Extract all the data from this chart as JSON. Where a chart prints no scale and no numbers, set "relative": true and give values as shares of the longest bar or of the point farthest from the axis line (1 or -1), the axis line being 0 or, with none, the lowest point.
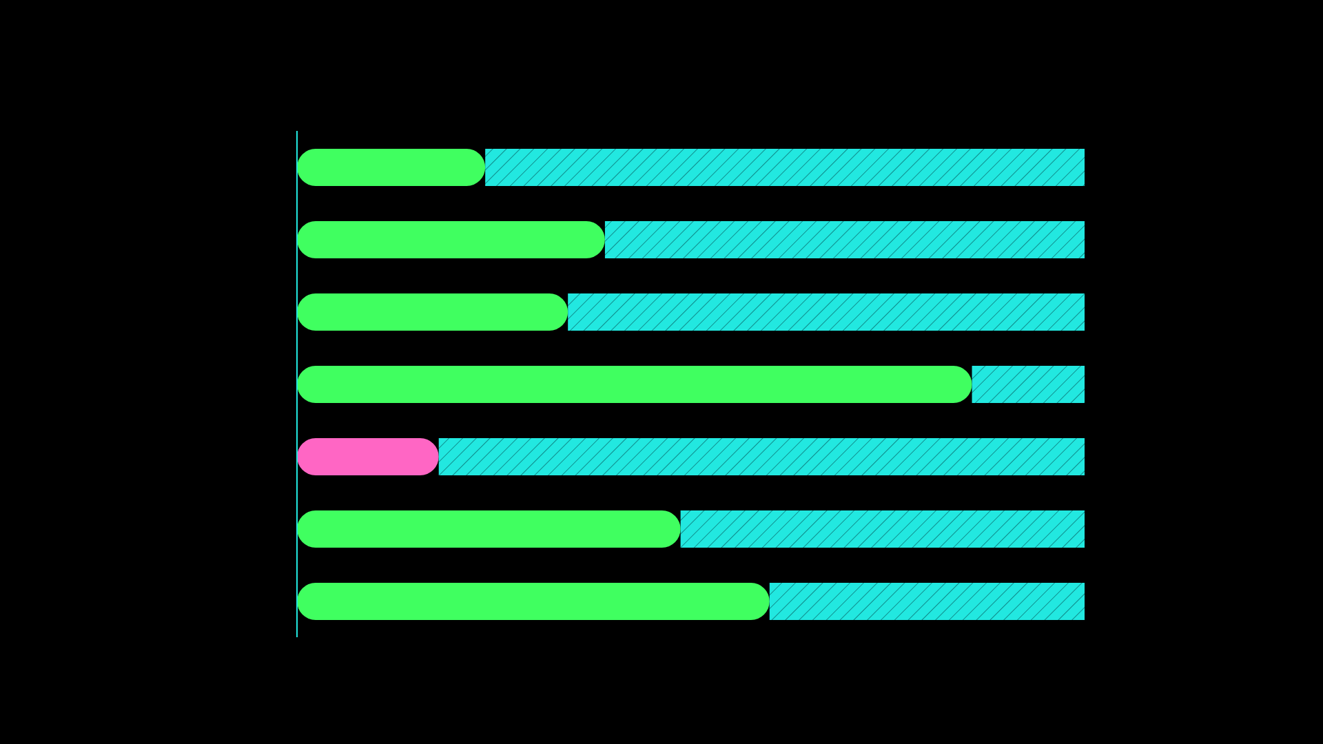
{
  "chart_data": {
    "type": "bar",
    "orientation": "horizontal",
    "stacked": true,
    "relative": true,
    "categories": [
      null,
      null,
      null,
      null,
      null,
      null,
      null
    ],
    "series": [
      {
        "colors": [
          "#40ff60",
          "#40ff60",
          "#40ff60",
          "#40ff60",
          "#ff66c4",
          "#40ff60",
          "#40ff60"
        ],
        "values": [
          0.239,
          0.391,
          0.344,
          0.857,
          0.18,
          0.487,
          0.6
        ]
      },
      {
        "color": "#22e8e0",
        "values": [
          0.761,
          0.609,
          0.656,
          0.143,
          0.82,
          0.513,
          0.4
        ]
      }
    ],
    "grid": false,
    "legend": false
  }
}
